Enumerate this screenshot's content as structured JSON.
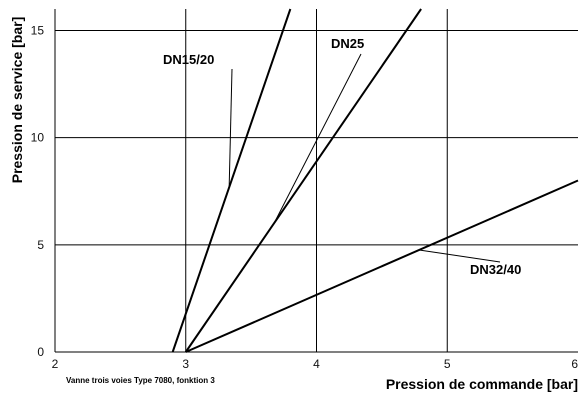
{
  "chart_data": {
    "type": "line",
    "xlabel": "Pression de commande [bar]",
    "ylabel": "Pression de service [bar]",
    "xlim": [
      2,
      6
    ],
    "ylim": [
      0,
      16
    ],
    "xticks": [
      "2",
      "3",
      "4",
      "5",
      "6"
    ],
    "yticks": [
      "0",
      "5",
      "10",
      "15"
    ],
    "grid": true,
    "footnote": "Vanne trois voies Type 7080,  fonktion 3",
    "series": [
      {
        "name": "DN15/20",
        "x": [
          2.9,
          3.8
        ],
        "y": [
          0,
          16
        ]
      },
      {
        "name": "DN25",
        "x": [
          3.0,
          4.8
        ],
        "y": [
          0,
          16
        ]
      },
      {
        "name": "DN32/40",
        "x": [
          3.0,
          6.0
        ],
        "y": [
          0,
          8
        ]
      }
    ],
    "colors": {
      "line": "#000000",
      "grid": "#000000",
      "background": "#ffffff"
    }
  }
}
